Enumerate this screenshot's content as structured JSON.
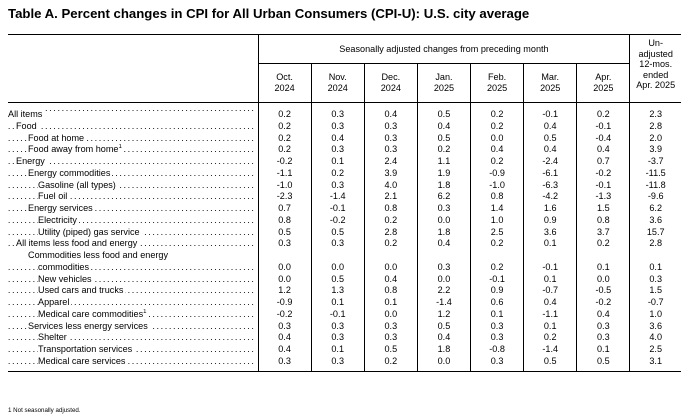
{
  "title": "Table A. Percent changes in CPI for All Urban Consumers (CPI-U): U.S. city average",
  "header": {
    "span_label": "Seasonally adjusted changes from preceding month",
    "unadjusted_label": [
      "Un-",
      "adjusted",
      "12-mos.",
      "ended",
      "Apr. 2025"
    ],
    "months": [
      {
        "m": "Oct.",
        "y": "2024"
      },
      {
        "m": "Nov.",
        "y": "2024"
      },
      {
        "m": "Dec.",
        "y": "2024"
      },
      {
        "m": "Jan.",
        "y": "2025"
      },
      {
        "m": "Feb.",
        "y": "2025"
      },
      {
        "m": "Mar.",
        "y": "2025"
      },
      {
        "m": "Apr.",
        "y": "2025"
      }
    ]
  },
  "rows": [
    {
      "label": "All items",
      "indent": 0,
      "values": [
        "0.2",
        "0.3",
        "0.4",
        "0.5",
        "0.2",
        "-0.1",
        "0.2",
        "2.3"
      ]
    },
    {
      "label": "Food",
      "indent": 1,
      "values": [
        "0.2",
        "0.3",
        "0.3",
        "0.4",
        "0.2",
        "0.4",
        "-0.1",
        "2.8"
      ]
    },
    {
      "label": "Food at home",
      "indent": 2,
      "values": [
        "0.2",
        "0.4",
        "0.3",
        "0.5",
        "0.0",
        "0.5",
        "-0.4",
        "2.0"
      ]
    },
    {
      "label": "Food away from home",
      "indent": 2,
      "fn": "1",
      "values": [
        "0.2",
        "0.3",
        "0.3",
        "0.2",
        "0.4",
        "0.4",
        "0.4",
        "3.9"
      ]
    },
    {
      "label": "Energy",
      "indent": 1,
      "values": [
        "-0.2",
        "0.1",
        "2.4",
        "1.1",
        "0.2",
        "-2.4",
        "0.7",
        "-3.7"
      ]
    },
    {
      "label": "Energy commodities",
      "indent": 2,
      "values": [
        "-1.1",
        "0.2",
        "3.9",
        "1.9",
        "-0.9",
        "-6.1",
        "-0.2",
        "-11.5"
      ]
    },
    {
      "label": "Gasoline (all types)",
      "indent": 3,
      "values": [
        "-1.0",
        "0.3",
        "4.0",
        "1.8",
        "-1.0",
        "-6.3",
        "-0.1",
        "-11.8"
      ]
    },
    {
      "label": "Fuel oil",
      "indent": 3,
      "values": [
        "-2.3",
        "-1.4",
        "2.1",
        "6.2",
        "0.8",
        "-4.2",
        "-1.3",
        "-9.6"
      ]
    },
    {
      "label": "Energy services",
      "indent": 2,
      "values": [
        "0.7",
        "-0.1",
        "0.8",
        "0.3",
        "1.4",
        "1.6",
        "1.5",
        "6.2"
      ]
    },
    {
      "label": "Electricity",
      "indent": 3,
      "values": [
        "0.8",
        "-0.2",
        "0.2",
        "0.0",
        "1.0",
        "0.9",
        "0.8",
        "3.6"
      ]
    },
    {
      "label": "Utility (piped) gas service",
      "indent": 3,
      "values": [
        "0.5",
        "0.5",
        "2.8",
        "1.8",
        "2.5",
        "3.6",
        "3.7",
        "15.7"
      ]
    },
    {
      "label": "All items less food and energy",
      "indent": 1,
      "values": [
        "0.3",
        "0.3",
        "0.2",
        "0.4",
        "0.2",
        "0.1",
        "0.2",
        "2.8"
      ]
    },
    {
      "label": "Commodities less food and energy",
      "indent": 2,
      "continuation": "commodities",
      "values": [
        "0.0",
        "0.0",
        "0.0",
        "0.3",
        "0.2",
        "-0.1",
        "0.1",
        "0.1"
      ]
    },
    {
      "label": "New vehicles",
      "indent": 3,
      "values": [
        "0.0",
        "0.5",
        "0.4",
        "0.0",
        "-0.1",
        "0.1",
        "0.0",
        "0.3"
      ]
    },
    {
      "label": "Used cars and trucks",
      "indent": 3,
      "values": [
        "1.2",
        "1.3",
        "0.8",
        "2.2",
        "0.9",
        "-0.7",
        "-0.5",
        "1.5"
      ]
    },
    {
      "label": "Apparel",
      "indent": 3,
      "values": [
        "-0.9",
        "0.1",
        "0.1",
        "-1.4",
        "0.6",
        "0.4",
        "-0.2",
        "-0.7"
      ]
    },
    {
      "label": "Medical care commodities",
      "indent": 3,
      "fn": "1",
      "values": [
        "-0.2",
        "-0.1",
        "0.0",
        "1.2",
        "0.1",
        "-1.1",
        "0.4",
        "1.0"
      ]
    },
    {
      "label": "Services less energy services",
      "indent": 2,
      "values": [
        "0.3",
        "0.3",
        "0.3",
        "0.5",
        "0.3",
        "0.1",
        "0.3",
        "3.6"
      ]
    },
    {
      "label": "Shelter",
      "indent": 3,
      "values": [
        "0.4",
        "0.3",
        "0.3",
        "0.4",
        "0.3",
        "0.2",
        "0.3",
        "4.0"
      ]
    },
    {
      "label": "Transportation services",
      "indent": 3,
      "values": [
        "0.4",
        "0.1",
        "0.5",
        "1.8",
        "-0.8",
        "-1.4",
        "0.1",
        "2.5"
      ]
    },
    {
      "label": "Medical care services",
      "indent": 3,
      "values": [
        "0.3",
        "0.3",
        "0.2",
        "0.0",
        "0.3",
        "0.5",
        "0.5",
        "3.1"
      ]
    }
  ],
  "footnote": "1 Not seasonally adjusted."
}
